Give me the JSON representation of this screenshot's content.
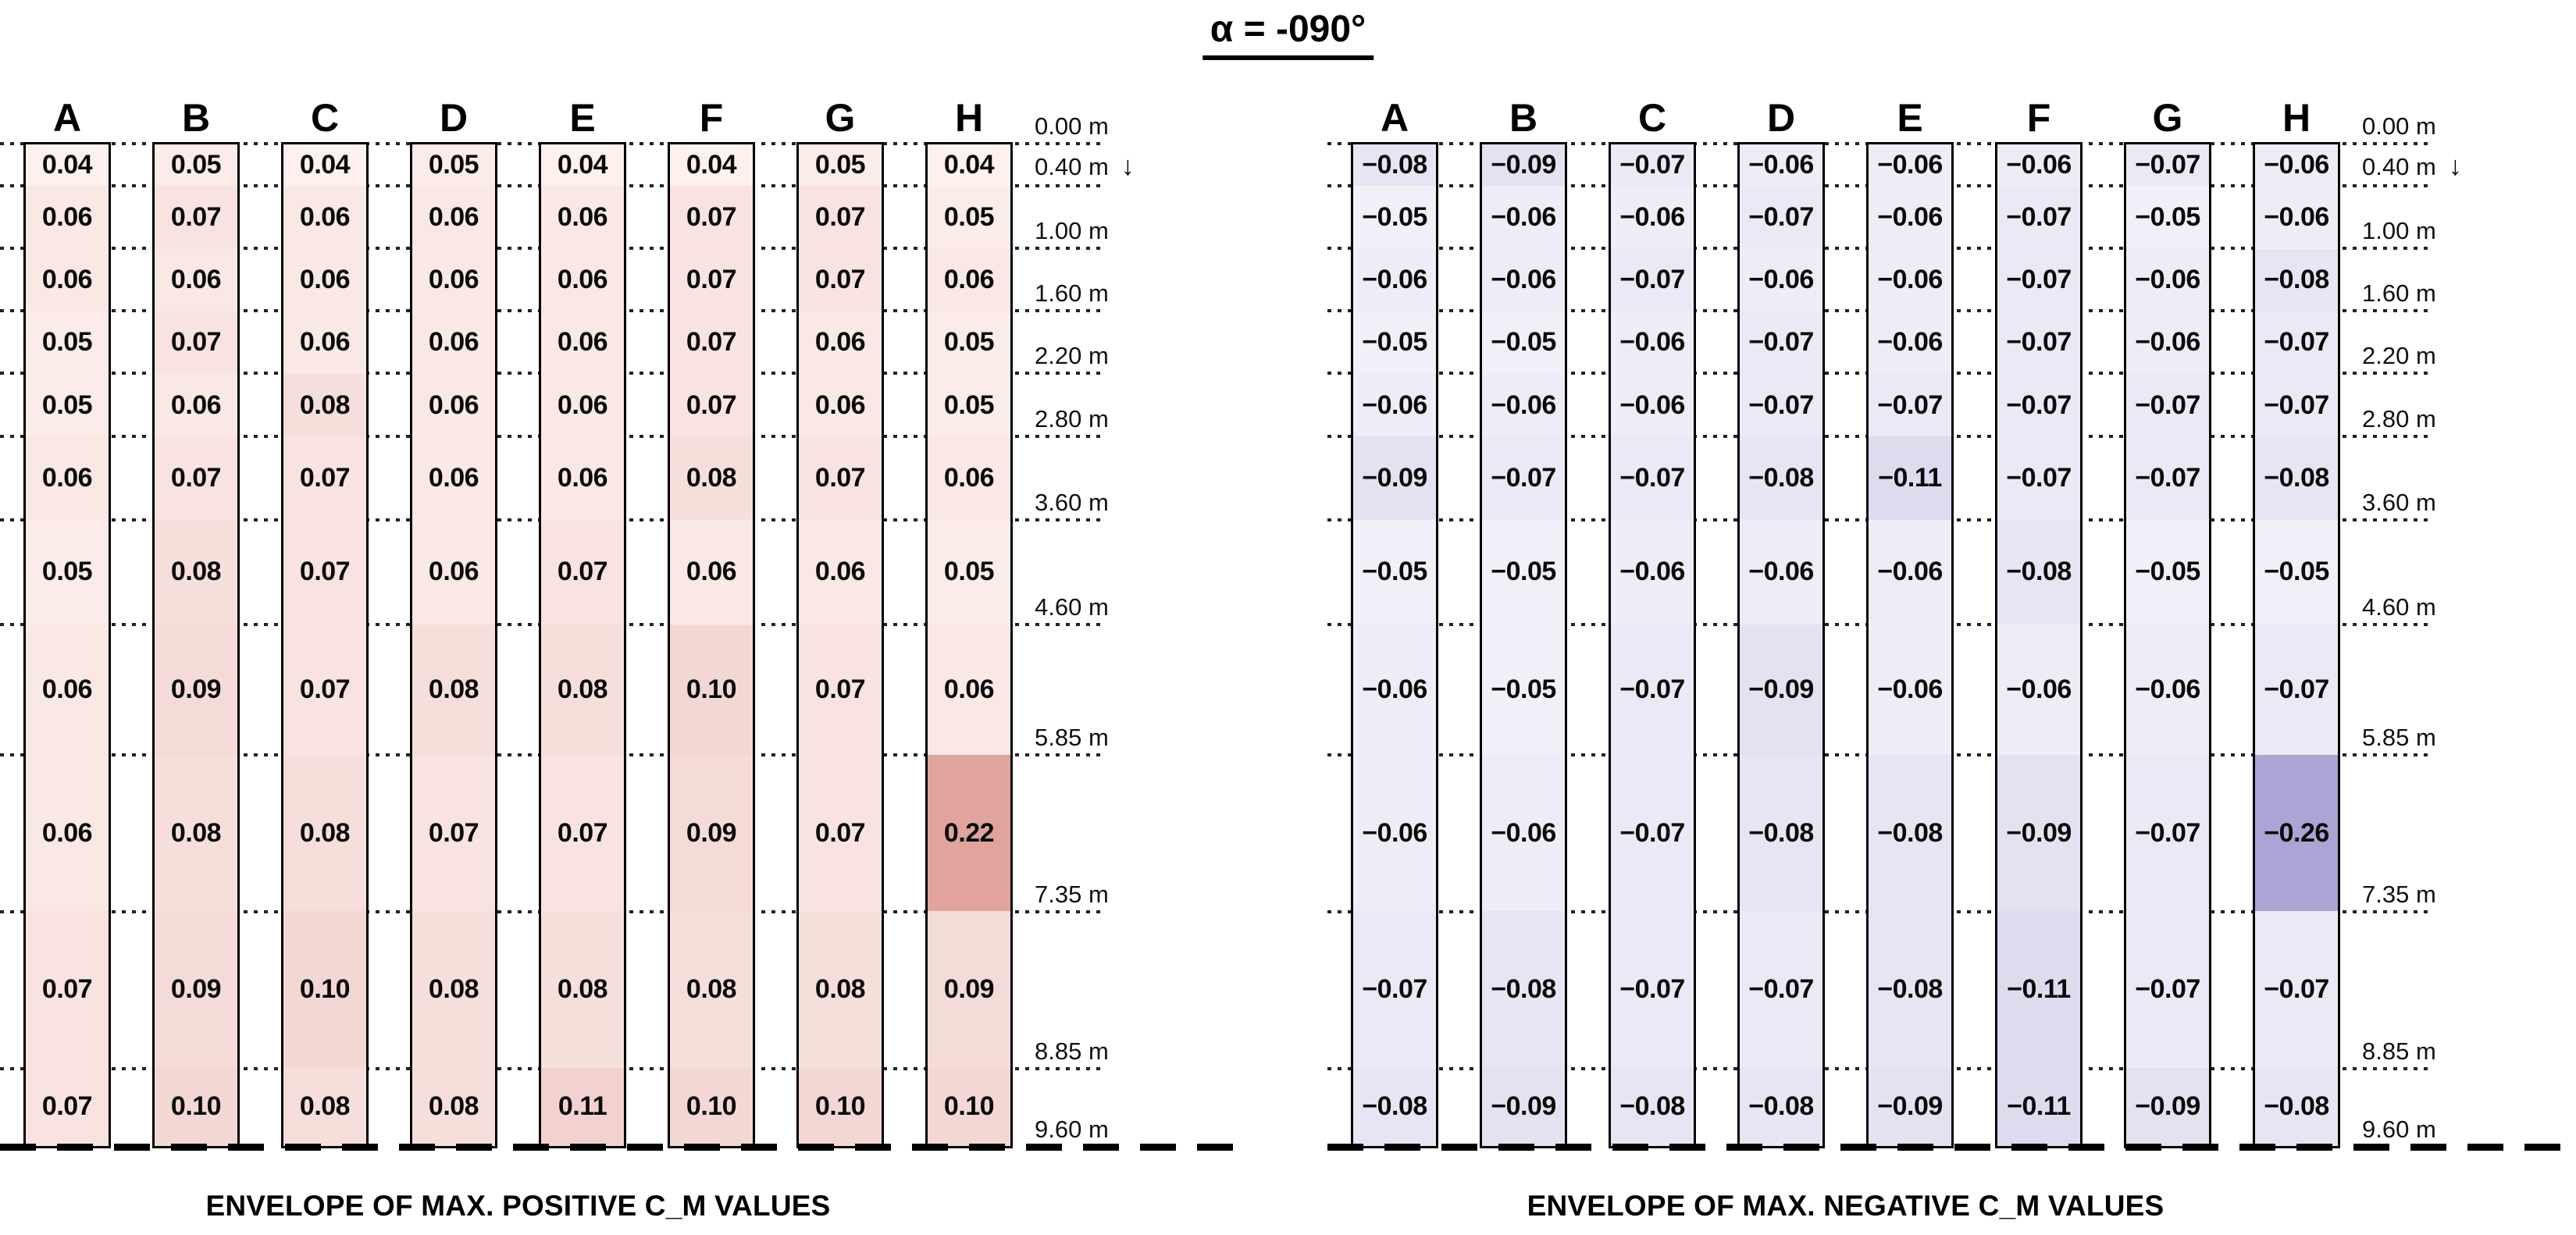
{
  "chart_data": {
    "type": "heatmap",
    "title": "α = -090°",
    "columns": [
      "A",
      "B",
      "C",
      "D",
      "E",
      "F",
      "G",
      "H"
    ],
    "depth_axis": {
      "unit": "m",
      "boundaries_m": [
        0.0,
        0.4,
        1.0,
        1.6,
        2.2,
        2.8,
        3.6,
        4.6,
        5.85,
        7.35,
        8.85,
        9.6
      ],
      "tick_labels": [
        "0.00 m",
        "0.40 m",
        "1.00 m",
        "1.60 m",
        "2.20 m",
        "2.80 m",
        "3.60 m",
        "4.60 m",
        "5.85 m",
        "7.35 m",
        "8.85 m",
        "9.60 m"
      ],
      "flow_arrow": "↓"
    },
    "panels": [
      {
        "id": "max-positive",
        "caption": "ENVELOPE OF MAX. POSITIVE C_M VALUES",
        "color_scale": {
          "light": "#fdf0ed",
          "dark": "#d9938a",
          "abs_domain": [
            0.04,
            0.26
          ]
        },
        "values": [
          [
            0.04,
            0.05,
            0.04,
            0.05,
            0.04,
            0.04,
            0.05,
            0.04
          ],
          [
            0.06,
            0.07,
            0.06,
            0.06,
            0.06,
            0.07,
            0.07,
            0.05
          ],
          [
            0.06,
            0.06,
            0.06,
            0.06,
            0.06,
            0.07,
            0.07,
            0.06
          ],
          [
            0.05,
            0.07,
            0.06,
            0.06,
            0.06,
            0.07,
            0.06,
            0.05
          ],
          [
            0.05,
            0.06,
            0.08,
            0.06,
            0.06,
            0.07,
            0.06,
            0.05
          ],
          [
            0.06,
            0.07,
            0.07,
            0.06,
            0.06,
            0.08,
            0.07,
            0.06
          ],
          [
            0.05,
            0.08,
            0.07,
            0.06,
            0.07,
            0.06,
            0.06,
            0.05
          ],
          [
            0.06,
            0.09,
            0.07,
            0.08,
            0.08,
            0.1,
            0.07,
            0.06
          ],
          [
            0.06,
            0.08,
            0.08,
            0.07,
            0.07,
            0.09,
            0.07,
            0.22
          ],
          [
            0.07,
            0.09,
            0.1,
            0.08,
            0.08,
            0.08,
            0.08,
            0.09
          ],
          [
            0.07,
            0.1,
            0.08,
            0.08,
            0.11,
            0.1,
            0.1,
            0.1
          ]
        ]
      },
      {
        "id": "max-negative",
        "caption": "ENVELOPE OF MAX. NEGATIVE C_M VALUES",
        "color_scale": {
          "light": "#f4f4fa",
          "dark": "#aca4d4",
          "abs_domain": [
            0.04,
            0.26
          ]
        },
        "values": [
          [
            -0.08,
            -0.09,
            -0.07,
            -0.06,
            -0.06,
            -0.06,
            -0.07,
            -0.06
          ],
          [
            -0.05,
            -0.06,
            -0.06,
            -0.07,
            -0.06,
            -0.07,
            -0.05,
            -0.06
          ],
          [
            -0.06,
            -0.06,
            -0.07,
            -0.06,
            -0.06,
            -0.07,
            -0.06,
            -0.08
          ],
          [
            -0.05,
            -0.05,
            -0.06,
            -0.07,
            -0.06,
            -0.07,
            -0.06,
            -0.07
          ],
          [
            -0.06,
            -0.06,
            -0.06,
            -0.07,
            -0.07,
            -0.07,
            -0.07,
            -0.07
          ],
          [
            -0.09,
            -0.07,
            -0.07,
            -0.08,
            -0.11,
            -0.07,
            -0.07,
            -0.08
          ],
          [
            -0.05,
            -0.05,
            -0.06,
            -0.06,
            -0.06,
            -0.08,
            -0.05,
            -0.05
          ],
          [
            -0.06,
            -0.05,
            -0.07,
            -0.09,
            -0.06,
            -0.06,
            -0.06,
            -0.07
          ],
          [
            -0.06,
            -0.06,
            -0.07,
            -0.08,
            -0.08,
            -0.09,
            -0.07,
            -0.26
          ],
          [
            -0.07,
            -0.08,
            -0.07,
            -0.07,
            -0.08,
            -0.11,
            -0.07,
            -0.07
          ],
          [
            -0.08,
            -0.09,
            -0.08,
            -0.08,
            -0.09,
            -0.11,
            -0.09,
            -0.08
          ]
        ]
      }
    ]
  }
}
